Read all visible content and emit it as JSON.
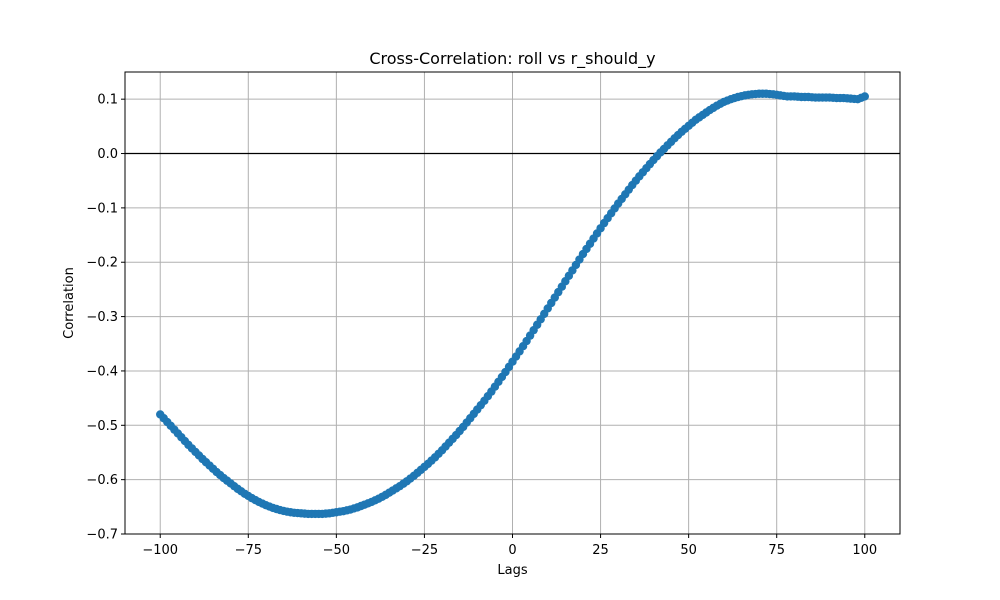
{
  "chart_data": {
    "type": "scatter",
    "title": "Cross-Correlation: roll vs r_should_y",
    "xlabel": "Lags",
    "ylabel": "Correlation",
    "xlim": [
      -110,
      110
    ],
    "ylim": [
      -0.7,
      0.15
    ],
    "xticks": [
      -100,
      -75,
      -50,
      -25,
      0,
      25,
      50,
      75,
      100
    ],
    "xtick_labels": [
      "−100",
      "−75",
      "−50",
      "−25",
      "0",
      "25",
      "50",
      "75",
      "100"
    ],
    "yticks": [
      0.1,
      0.0,
      -0.1,
      -0.2,
      -0.3,
      -0.4,
      -0.5,
      -0.6,
      -0.7
    ],
    "ytick_labels": [
      "0.1",
      "0.0",
      "−0.1",
      "−0.2",
      "−0.3",
      "−0.4",
      "−0.5",
      "−0.6",
      "−0.7"
    ],
    "grid": true,
    "reference_line_y": 0.0,
    "marker_color": "#1f77b4",
    "series": [
      {
        "x": [
          -100,
          -98,
          -96,
          -94,
          -92,
          -90,
          -88,
          -86,
          -84,
          -82,
          -80,
          -78,
          -76,
          -74,
          -72,
          -70,
          -68,
          -66,
          -64,
          -62,
          -60,
          -58,
          -56,
          -54,
          -52,
          -50,
          -48,
          -46,
          -44,
          -42,
          -40,
          -38,
          -36,
          -34,
          -32,
          -30,
          -28,
          -26,
          -24,
          -22,
          -20,
          -18,
          -16,
          -14,
          -12,
          -10,
          -8,
          -6,
          -4,
          -2,
          0,
          2,
          4,
          6,
          8,
          10,
          12,
          14,
          16,
          18,
          20,
          22,
          24,
          26,
          28,
          30,
          32,
          34,
          36,
          38,
          40,
          42,
          44,
          46,
          48,
          50,
          52,
          54,
          56,
          58,
          60,
          62,
          64,
          66,
          68,
          70,
          72,
          74,
          76,
          78,
          80,
          82,
          84,
          86,
          88,
          90,
          92,
          94,
          96,
          98,
          100
        ],
        "values": [
          -0.48,
          -0.494,
          -0.508,
          -0.522,
          -0.536,
          -0.549,
          -0.562,
          -0.574,
          -0.586,
          -0.597,
          -0.607,
          -0.617,
          -0.626,
          -0.634,
          -0.641,
          -0.647,
          -0.652,
          -0.656,
          -0.659,
          -0.661,
          -0.662,
          -0.663,
          -0.663,
          -0.663,
          -0.662,
          -0.66,
          -0.658,
          -0.655,
          -0.651,
          -0.646,
          -0.641,
          -0.635,
          -0.628,
          -0.62,
          -0.612,
          -0.603,
          -0.593,
          -0.582,
          -0.571,
          -0.559,
          -0.546,
          -0.532,
          -0.518,
          -0.503,
          -0.487,
          -0.471,
          -0.455,
          -0.438,
          -0.42,
          -0.402,
          -0.383,
          -0.364,
          -0.345,
          -0.325,
          -0.305,
          -0.285,
          -0.265,
          -0.245,
          -0.225,
          -0.205,
          -0.185,
          -0.166,
          -0.147,
          -0.128,
          -0.11,
          -0.092,
          -0.075,
          -0.058,
          -0.042,
          -0.027,
          -0.012,
          0.002,
          0.015,
          0.028,
          0.04,
          0.051,
          0.062,
          0.071,
          0.08,
          0.088,
          0.095,
          0.1,
          0.104,
          0.107,
          0.109,
          0.11,
          0.11,
          0.109,
          0.107,
          0.105,
          0.105,
          0.104,
          0.104,
          0.103,
          0.103,
          0.103,
          0.102,
          0.102,
          0.101,
          0.1,
          0.105
        ]
      }
    ]
  }
}
